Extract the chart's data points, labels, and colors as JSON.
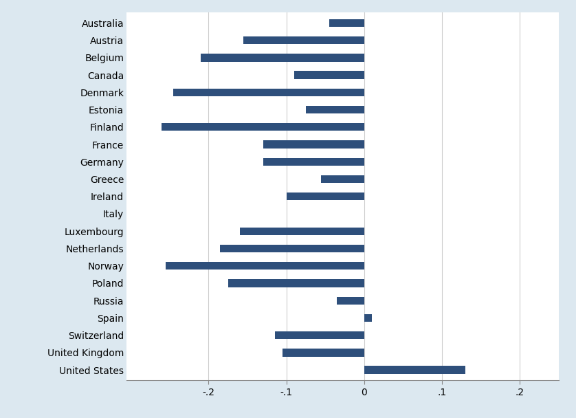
{
  "countries": [
    "Australia",
    "Austria",
    "Belgium",
    "Canada",
    "Denmark",
    "Estonia",
    "Finland",
    "France",
    "Germany",
    "Greece",
    "Ireland",
    "Italy",
    "Luxembourg",
    "Netherlands",
    "Norway",
    "Poland",
    "Russia",
    "Spain",
    "Switzerland",
    "United Kingdom",
    "United States"
  ],
  "values": [
    -0.045,
    -0.155,
    -0.21,
    -0.09,
    -0.245,
    -0.075,
    -0.26,
    -0.13,
    -0.13,
    -0.055,
    -0.1,
    0.0,
    -0.16,
    -0.185,
    -0.255,
    -0.175,
    -0.035,
    0.01,
    -0.115,
    -0.105,
    0.13
  ],
  "bar_color": "#2e4f7b",
  "background_color": "#dce8f0",
  "plot_background": "#ffffff",
  "xlim": [
    -0.305,
    0.25
  ],
  "xticks": [
    -0.2,
    -0.1,
    0.0,
    0.1,
    0.2
  ],
  "xticklabels": [
    "-.2",
    "-.1",
    "0",
    ".1",
    ".2"
  ],
  "figsize": [
    8.38,
    6.08
  ],
  "dpi": 100,
  "bar_height": 0.45
}
